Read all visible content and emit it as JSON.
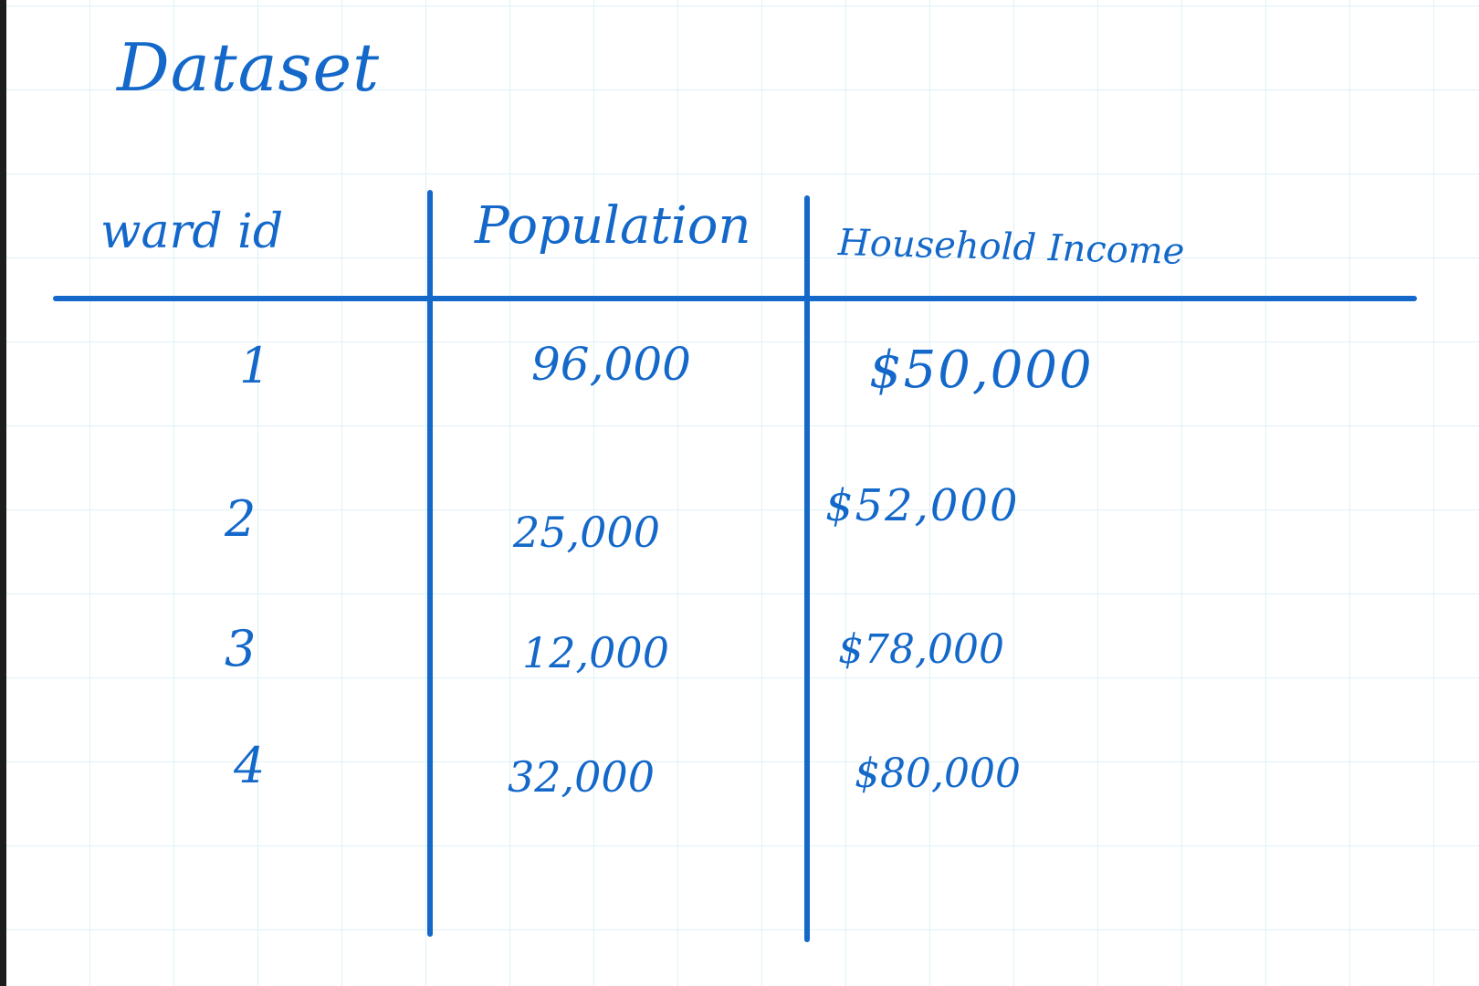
{
  "title": "Dataset",
  "ink_color": "#1368c9",
  "grid_color": "#dff1f7",
  "table": {
    "headers": [
      "ward id",
      "Population",
      "Household Income"
    ],
    "rows": [
      [
        "1",
        "96,000",
        "$50,000"
      ],
      [
        "2",
        "25,000",
        "$52,000"
      ],
      [
        "3",
        "12,000",
        "$78,000"
      ],
      [
        "4",
        "32,000",
        "$80,000"
      ]
    ]
  }
}
